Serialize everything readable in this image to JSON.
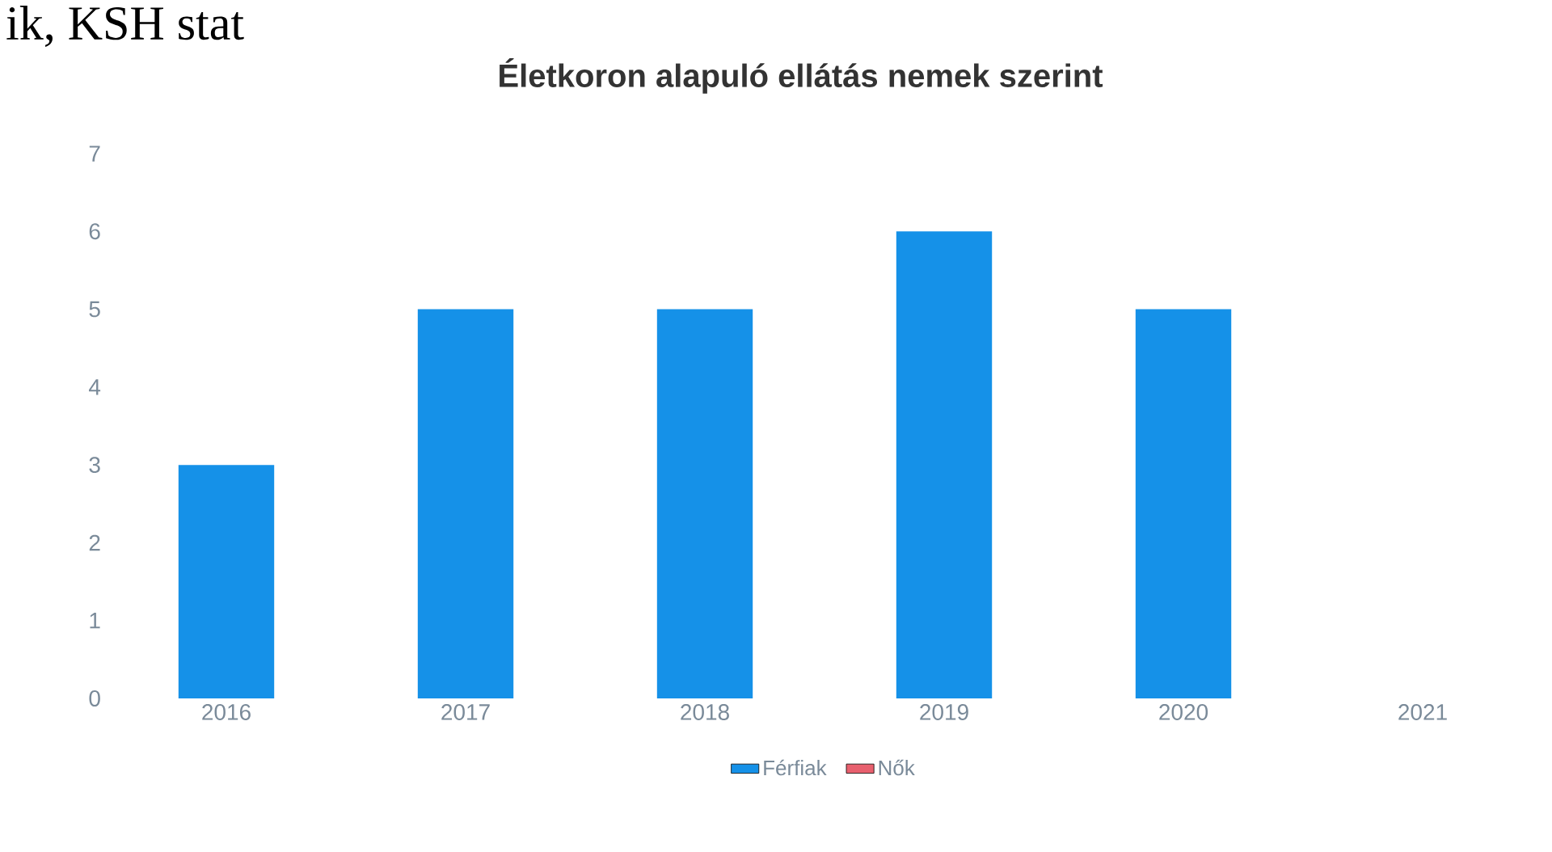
{
  "chart_data": {
    "type": "bar",
    "title": "Életkoron alapuló ellátás nemek szerint",
    "annotations": [
      "ik, KSH stat"
    ],
    "categories": [
      "2016",
      "2017",
      "2018",
      "2019",
      "2020",
      "2021"
    ],
    "series": [
      {
        "name": "Férfiak",
        "color": "#1591e8",
        "values": [
          3,
          5,
          5,
          6,
          5,
          0
        ]
      },
      {
        "name": "Nők",
        "color": "#e8606e",
        "values": [
          null,
          null,
          null,
          null,
          null,
          null
        ]
      }
    ],
    "ylim": [
      0,
      7
    ],
    "yticks": [
      0,
      1,
      2,
      3,
      4,
      5,
      6,
      7
    ],
    "legend": "bottom"
  }
}
